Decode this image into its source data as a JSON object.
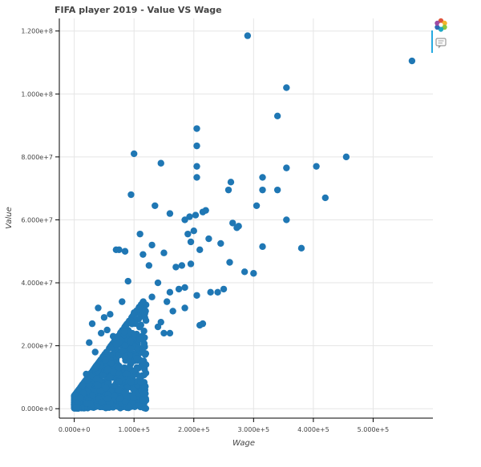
{
  "chart_data": {
    "type": "scatter",
    "title": "FIFA player 2019 - Value VS Wage",
    "xlabel": "Wage",
    "ylabel": "Value",
    "xlim": [
      -25000,
      600000
    ],
    "ylim": [
      -3000000,
      124000000
    ],
    "x_ticks": [
      0,
      100000,
      200000,
      300000,
      400000,
      500000
    ],
    "x_tick_labels": [
      "0.000e+0",
      "1.000e+5",
      "2.000e+5",
      "3.000e+5",
      "4.000e+5",
      "5.000e+5"
    ],
    "y_ticks": [
      0,
      20000000,
      40000000,
      60000000,
      80000000,
      100000000,
      120000000
    ],
    "y_tick_labels": [
      "0.000e+0",
      "2.000e+7",
      "4.000e+7",
      "6.000e+7",
      "8.000e+7",
      "1.000e+8",
      "1.200e+8"
    ],
    "grid": true,
    "legend": "none",
    "point_color": "#1f77b4",
    "series": [
      {
        "x": [
          565000,
          290000,
          355000,
          340000,
          205000,
          455000,
          205000,
          100000,
          145000,
          405000,
          205000,
          355000,
          315000,
          205000,
          262000,
          95000,
          340000,
          315000,
          258000,
          420000,
          305000,
          135000,
          203000,
          220000,
          215000,
          275000,
          160000,
          185000,
          193000,
          355000,
          265000,
          200000,
          272000,
          190000,
          195000,
          225000,
          245000,
          130000,
          380000,
          315000,
          70000,
          75000,
          85000,
          110000,
          115000,
          125000,
          150000,
          170000,
          180000,
          210000,
          195000,
          260000,
          285000,
          300000,
          160000,
          140000,
          175000,
          228000,
          240000,
          250000,
          155000,
          130000,
          120000,
          205000,
          185000,
          165000,
          145000,
          100000,
          90000,
          25000,
          20000,
          30000,
          40000,
          60000,
          80000,
          50000,
          55000,
          45000,
          35000,
          65000,
          70000,
          120000,
          140000,
          160000,
          110000,
          95000,
          105000,
          185000,
          215000,
          210000,
          150000,
          120000,
          100000,
          75000,
          60000,
          40000,
          15000,
          10000,
          5000,
          3000,
          22000
        ],
        "y": [
          110500000,
          118500000,
          102000000,
          93000000,
          89000000,
          80000000,
          83500000,
          81000000,
          78000000,
          77000000,
          77000000,
          76500000,
          73500000,
          73500000,
          72000000,
          68000000,
          69500000,
          69500000,
          69500000,
          67000000,
          64500000,
          64500000,
          61500000,
          63000000,
          62500000,
          58000000,
          62000000,
          60000000,
          61000000,
          60000000,
          59000000,
          56500000,
          57500000,
          55500000,
          53000000,
          54000000,
          52500000,
          52000000,
          51000000,
          51500000,
          50500000,
          50500000,
          50000000,
          55500000,
          49000000,
          45500000,
          49500000,
          45000000,
          45500000,
          50500000,
          46000000,
          46500000,
          43500000,
          43000000,
          37000000,
          40000000,
          38000000,
          37000000,
          37000000,
          38000000,
          34000000,
          35500000,
          33000000,
          36000000,
          38500000,
          31000000,
          27500000,
          30500000,
          40500000,
          21000000,
          11000000,
          27000000,
          32000000,
          30000000,
          34000000,
          29000000,
          25000000,
          24000000,
          18000000,
          23000000,
          20500000,
          28000000,
          26000000,
          24000000,
          22000000,
          19000000,
          16000000,
          32000000,
          27000000,
          26500000,
          24000000,
          14000000,
          12000000,
          13000000,
          10000000,
          7500000,
          5000000,
          3500000,
          1500000,
          500000,
          9000000
        ]
      }
    ]
  },
  "toolbar": {
    "logo_icon": "bokeh-logo-icon",
    "hover_icon": "hover-tool-icon"
  }
}
